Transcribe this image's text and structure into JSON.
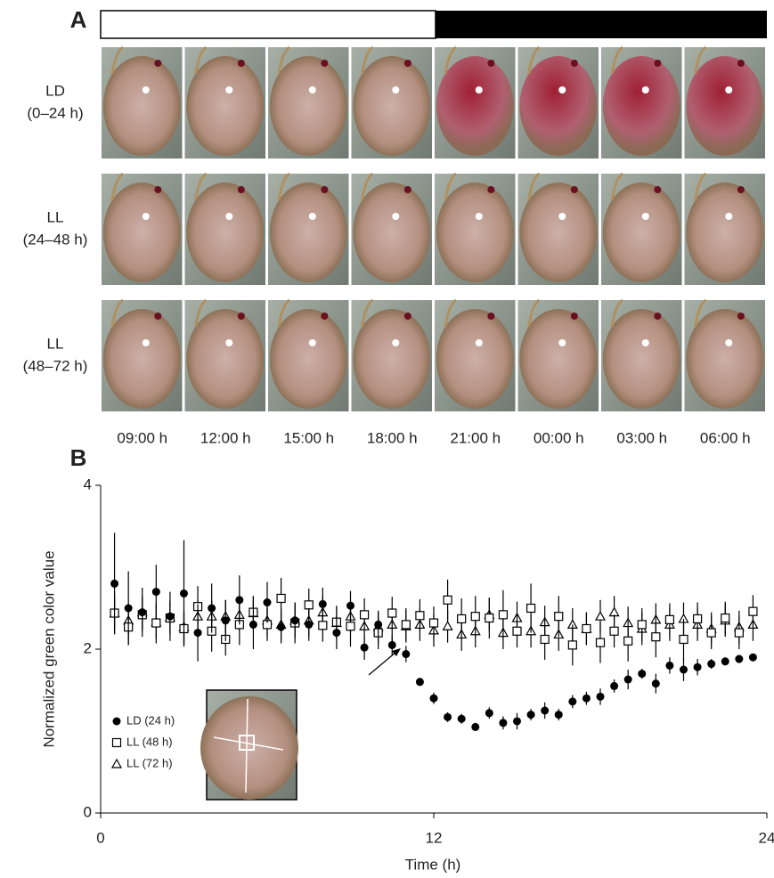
{
  "panel_a": {
    "label": "A",
    "rows": [
      "LD",
      "(0–24 h)",
      "LL",
      "(24–48 h)",
      "LL",
      "(48–72 h)"
    ],
    "times": [
      "09:00 h",
      "12:00 h",
      "15:00 h",
      "18:00 h",
      "21:00 h",
      "00:00 h",
      "03:00 h",
      "06:00 h"
    ]
  },
  "chart_data": {
    "type": "scatter",
    "label": "B",
    "xlabel": "Time (h)",
    "ylabel": "Normalized green color value",
    "xlim": [
      0,
      24
    ],
    "xticks": [
      0,
      12,
      24
    ],
    "ylim": [
      0,
      4
    ],
    "yticks": [
      0,
      2,
      4
    ],
    "x": [
      0.5,
      1,
      1.5,
      2,
      2.5,
      3,
      3.5,
      4,
      4.5,
      5,
      5.5,
      6,
      6.5,
      7,
      7.5,
      8,
      8.5,
      9,
      9.5,
      10,
      10.5,
      11,
      11.5,
      12,
      12.5,
      13,
      13.5,
      14,
      14.5,
      15,
      15.5,
      16,
      16.5,
      17,
      17.5,
      18,
      18.5,
      19,
      19.5,
      20,
      20.5,
      21,
      21.5,
      22,
      22.5,
      23,
      23.5
    ],
    "legend": "lower left",
    "series": [
      {
        "name": "LD (24 h)",
        "marker": "circle",
        "color": "#000000",
        "values": [
          2.8,
          2.5,
          2.45,
          2.7,
          2.4,
          2.68,
          2.2,
          2.5,
          2.35,
          2.6,
          2.3,
          2.57,
          2.27,
          2.35,
          2.3,
          2.55,
          2.2,
          2.53,
          2.02,
          2.3,
          2.05,
          1.94,
          1.6,
          1.4,
          1.17,
          1.15,
          1.05,
          1.22,
          1.1,
          1.12,
          1.2,
          1.25,
          1.2,
          1.36,
          1.4,
          1.42,
          1.55,
          1.63,
          1.7,
          1.58,
          1.8,
          1.75,
          1.78,
          1.82,
          1.85,
          1.88,
          1.9
        ],
        "errors": [
          0.62,
          0.45,
          0.3,
          0.33,
          0.3,
          0.65,
          0.35,
          0.3,
          0.25,
          0.3,
          0.3,
          0.25,
          0.2,
          0.22,
          0.2,
          0.2,
          0.2,
          0.18,
          0.15,
          0.15,
          0.12,
          0.1,
          0.05,
          0.07,
          0.06,
          0.06,
          0.05,
          0.07,
          0.08,
          0.1,
          0.07,
          0.1,
          0.07,
          0.08,
          0.08,
          0.1,
          0.08,
          0.12,
          0.06,
          0.12,
          0.1,
          0.14,
          0.1,
          0.06,
          0.05,
          0.05,
          0.04
        ]
      },
      {
        "name": "LL (48 h)",
        "marker": "square",
        "color": "#000000",
        "values": [
          2.44,
          2.27,
          2.42,
          2.32,
          2.38,
          2.25,
          2.52,
          2.22,
          2.12,
          2.3,
          2.45,
          2.3,
          2.62,
          2.32,
          2.54,
          2.29,
          2.33,
          2.28,
          2.42,
          2.2,
          2.44,
          2.3,
          2.41,
          2.32,
          2.6,
          2.37,
          2.4,
          2.38,
          2.42,
          2.22,
          2.5,
          2.12,
          2.4,
          2.05,
          2.25,
          2.08,
          2.22,
          2.1,
          2.3,
          2.15,
          2.36,
          2.12,
          2.37,
          2.2,
          2.38,
          2.2,
          2.46
        ],
        "errors": [
          0.25,
          0.22,
          0.2,
          0.25,
          0.2,
          0.2,
          0.25,
          0.25,
          0.2,
          0.25,
          0.2,
          0.2,
          0.25,
          0.25,
          0.2,
          0.2,
          0.2,
          0.25,
          0.2,
          0.2,
          0.2,
          0.2,
          0.2,
          0.2,
          0.25,
          0.25,
          0.25,
          0.25,
          0.3,
          0.2,
          0.3,
          0.25,
          0.25,
          0.25,
          0.2,
          0.25,
          0.2,
          0.25,
          0.2,
          0.25,
          0.2,
          0.25,
          0.2,
          0.2,
          0.2,
          0.2,
          0.2
        ]
      },
      {
        "name": "LL (72 h)",
        "marker": "triangle",
        "color": "#000000",
        "values": [
          2.44,
          2.35,
          2.45,
          2.33,
          2.39,
          2.27,
          2.4,
          2.4,
          2.4,
          2.42,
          2.44,
          2.35,
          2.3,
          2.35,
          2.35,
          2.45,
          2.32,
          2.4,
          2.28,
          2.27,
          2.3,
          2.28,
          2.3,
          2.23,
          2.28,
          2.18,
          2.22,
          2.42,
          2.2,
          2.38,
          2.22,
          2.33,
          2.18,
          2.3,
          2.25,
          2.4,
          2.45,
          2.32,
          2.25,
          2.36,
          2.3,
          2.37,
          2.3,
          2.25,
          2.35,
          2.27,
          2.3
        ],
        "errors": [
          0.2,
          0.2,
          0.2,
          0.2,
          0.2,
          0.2,
          0.2,
          0.2,
          0.2,
          0.2,
          0.2,
          0.2,
          0.2,
          0.2,
          0.2,
          0.2,
          0.2,
          0.2,
          0.2,
          0.2,
          0.2,
          0.2,
          0.2,
          0.2,
          0.2,
          0.2,
          0.2,
          0.2,
          0.2,
          0.2,
          0.2,
          0.2,
          0.2,
          0.2,
          0.2,
          0.2,
          0.2,
          0.2,
          0.2,
          0.2,
          0.2,
          0.2,
          0.2,
          0.2,
          0.2,
          0.2,
          0.2
        ]
      }
    ]
  }
}
